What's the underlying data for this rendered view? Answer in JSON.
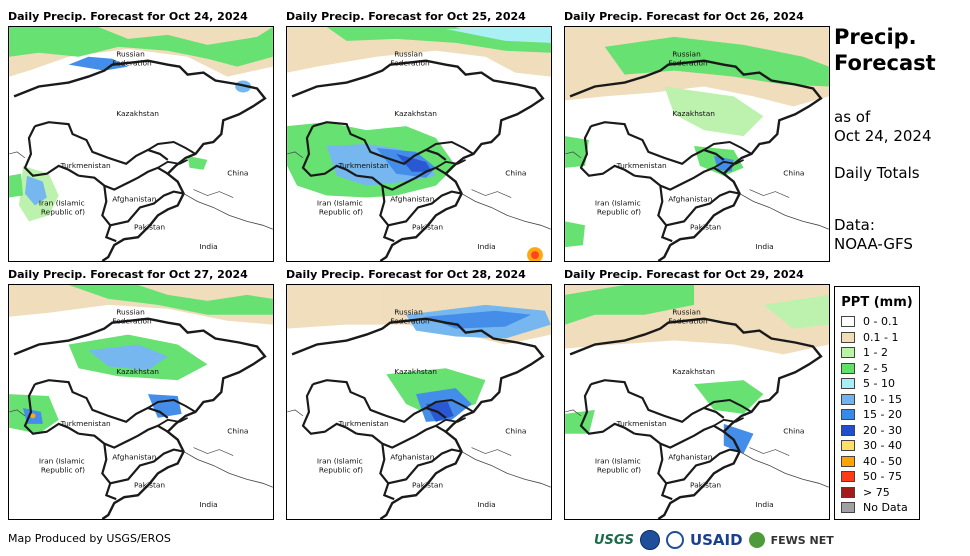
{
  "panels": [
    {
      "title": "Daily Precip. Forecast for Oct 24, 2024"
    },
    {
      "title": "Daily Precip. Forecast for Oct 25, 2024"
    },
    {
      "title": "Daily Precip. Forecast for Oct 26, 2024"
    },
    {
      "title": "Daily Precip. Forecast for Oct 27, 2024"
    },
    {
      "title": "Daily Precip. Forecast for Oct 28, 2024"
    },
    {
      "title": "Daily Precip. Forecast for Oct 29, 2024"
    }
  ],
  "map_labels": {
    "russia_1": "Russian",
    "russia_2": "Federation",
    "kazakhstan": "Kazakhstan",
    "turkmenistan": "Turkmenistan",
    "china": "China",
    "iran_1": "Iran  (Islamic",
    "iran_2": "Republic of)",
    "afghanistan": "Afghanistan",
    "pakistan": "Pakistan",
    "india": "India"
  },
  "side": {
    "title_line1": "Precip.",
    "title_line2": "Forecast",
    "as_of": "as of",
    "date": "Oct 24, 2024",
    "totals": "Daily Totals",
    "data_label": "Data:",
    "data_source": "NOAA-GFS"
  },
  "legend": {
    "title": "PPT (mm)",
    "items": [
      {
        "label": "0 - 0.1",
        "color": "#ffffff"
      },
      {
        "label": "0.1 - 1",
        "color": "#f0dcb8"
      },
      {
        "label": "1 - 2",
        "color": "#b9f2a9"
      },
      {
        "label": "2 - 5",
        "color": "#5fe06a"
      },
      {
        "label": "5 - 10",
        "color": "#a6f0f5"
      },
      {
        "label": "10 - 15",
        "color": "#6fb4f0"
      },
      {
        "label": "15 - 20",
        "color": "#3a88e8"
      },
      {
        "label": "20 - 30",
        "color": "#1f4fd0"
      },
      {
        "label": "30 - 40",
        "color": "#ffe066"
      },
      {
        "label": "40 - 50",
        "color": "#ffa500"
      },
      {
        "label": "50 - 75",
        "color": "#ff3b1a"
      },
      {
        "label": "> 75",
        "color": "#a31a1a"
      },
      {
        "label": "No Data",
        "color": "#a0a0a0"
      }
    ]
  },
  "footer": {
    "credit": "Map Produced by USGS/EROS",
    "logo_usgs": "USGS",
    "logo_usaid": "USAID",
    "logo_fews": "FEWS NET"
  }
}
